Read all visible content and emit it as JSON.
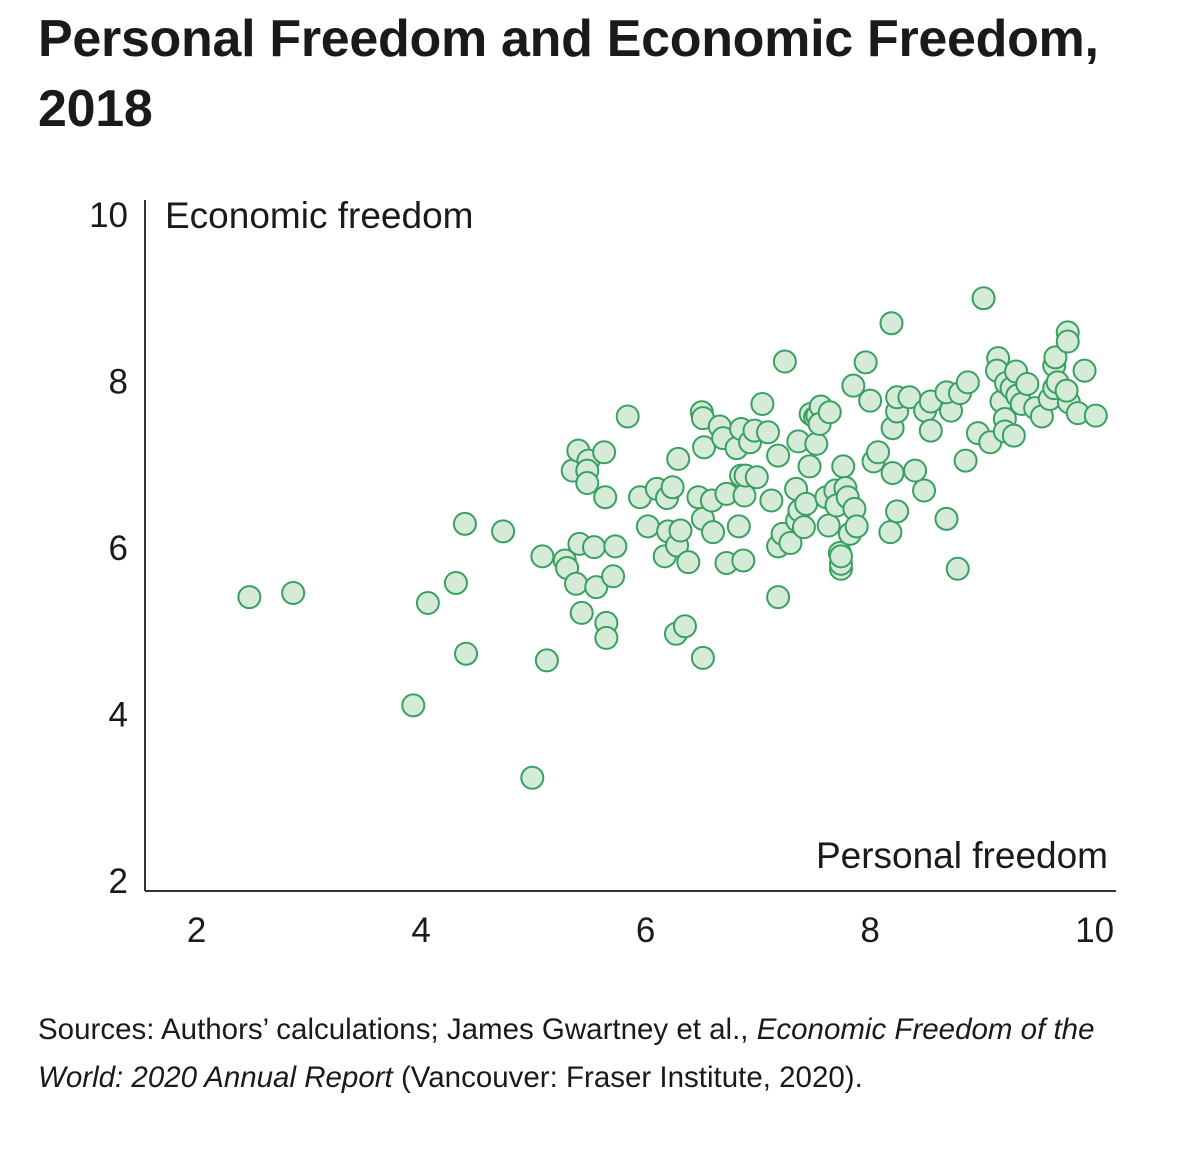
{
  "title": "Personal Freedom and Economic Freedom, 2018",
  "sources": {
    "prefix": "Sources: Authors’ calculations; James Gwartney et al., ",
    "italic": "Economic Freedom of the World: 2020 Annual Report",
    "suffix": " (Vancouver: Fraser Institute, 2020)."
  },
  "colors": {
    "point_fill": "#d5ebd8",
    "point_stroke": "#38a061",
    "axis": "#333333"
  },
  "chart_data": {
    "type": "scatter",
    "title": "Personal Freedom and Economic Freedom, 2018",
    "xlabel": "Personal freedom",
    "ylabel": "Economic freedom",
    "xlim": [
      1.54,
      10.19
    ],
    "ylim": [
      1.88,
      10.18
    ],
    "xticks": [
      "2",
      "4",
      "6",
      "8",
      "10"
    ],
    "yticks": [
      "2",
      "4",
      "6",
      "8",
      "10"
    ],
    "grid": false,
    "points": [
      [
        2.47,
        5.41
      ],
      [
        2.86,
        5.46
      ],
      [
        3.93,
        4.11
      ],
      [
        4.06,
        5.34
      ],
      [
        4.31,
        5.58
      ],
      [
        4.39,
        6.29
      ],
      [
        4.4,
        4.73
      ],
      [
        4.73,
        6.2
      ],
      [
        4.99,
        3.24
      ],
      [
        5.12,
        4.65
      ],
      [
        5.08,
        5.9
      ],
      [
        5.28,
        5.85
      ],
      [
        5.3,
        5.76
      ],
      [
        5.38,
        5.57
      ],
      [
        5.43,
        5.22
      ],
      [
        5.35,
        6.93
      ],
      [
        5.4,
        7.17
      ],
      [
        5.41,
        6.05
      ],
      [
        5.49,
        7.05
      ],
      [
        5.48,
        6.93
      ],
      [
        5.48,
        6.78
      ],
      [
        5.54,
        6.01
      ],
      [
        5.56,
        5.53
      ],
      [
        5.63,
        7.15
      ],
      [
        5.64,
        6.61
      ],
      [
        5.65,
        5.1
      ],
      [
        5.65,
        4.92
      ],
      [
        5.71,
        5.66
      ],
      [
        5.73,
        6.02
      ],
      [
        5.84,
        7.58
      ],
      [
        5.95,
        6.61
      ],
      [
        6.02,
        6.26
      ],
      [
        6.1,
        6.71
      ],
      [
        6.17,
        5.9
      ],
      [
        6.19,
        6.6
      ],
      [
        6.2,
        6.2
      ],
      [
        6.24,
        6.73
      ],
      [
        6.27,
        4.97
      ],
      [
        6.28,
        6.03
      ],
      [
        6.29,
        7.07
      ],
      [
        6.31,
        6.21
      ],
      [
        6.35,
        5.06
      ],
      [
        6.38,
        5.83
      ],
      [
        6.47,
        6.61
      ],
      [
        6.5,
        7.63
      ],
      [
        6.51,
        7.56
      ],
      [
        6.51,
        6.35
      ],
      [
        6.51,
        4.68
      ],
      [
        6.52,
        7.21
      ],
      [
        6.59,
        6.57
      ],
      [
        6.6,
        6.19
      ],
      [
        6.66,
        7.46
      ],
      [
        6.69,
        7.32
      ],
      [
        6.72,
        6.65
      ],
      [
        6.72,
        5.82
      ],
      [
        6.81,
        7.2
      ],
      [
        6.83,
        6.26
      ],
      [
        6.85,
        6.87
      ],
      [
        6.85,
        7.43
      ],
      [
        6.87,
        5.85
      ],
      [
        6.88,
        6.63
      ],
      [
        6.89,
        6.87
      ],
      [
        6.93,
        7.27
      ],
      [
        6.97,
        7.41
      ],
      [
        6.99,
        6.85
      ],
      [
        7.04,
        7.73
      ],
      [
        7.09,
        7.39
      ],
      [
        7.12,
        6.57
      ],
      [
        7.18,
        7.11
      ],
      [
        7.18,
        6.02
      ],
      [
        7.18,
        5.41
      ],
      [
        7.22,
        6.17
      ],
      [
        7.24,
        8.24
      ],
      [
        7.29,
        6.06
      ],
      [
        7.34,
        6.71
      ],
      [
        7.36,
        7.28
      ],
      [
        7.35,
        6.33
      ],
      [
        7.37,
        6.45
      ],
      [
        7.41,
        6.25
      ],
      [
        7.43,
        6.53
      ],
      [
        7.46,
        6.98
      ],
      [
        7.47,
        7.61
      ],
      [
        7.51,
        7.57
      ],
      [
        7.53,
        7.59
      ],
      [
        7.56,
        7.7
      ],
      [
        7.52,
        7.25
      ],
      [
        7.55,
        7.49
      ],
      [
        7.61,
        6.61
      ],
      [
        7.63,
        6.27
      ],
      [
        7.64,
        7.63
      ],
      [
        7.69,
        6.69
      ],
      [
        7.7,
        6.51
      ],
      [
        7.73,
        5.94
      ],
      [
        7.74,
        5.75
      ],
      [
        7.74,
        5.81
      ],
      [
        7.74,
        5.9
      ],
      [
        7.76,
        6.98
      ],
      [
        7.78,
        6.72
      ],
      [
        7.8,
        6.61
      ],
      [
        7.82,
        6.17
      ],
      [
        7.86,
        6.47
      ],
      [
        7.88,
        6.26
      ],
      [
        7.85,
        7.95
      ],
      [
        7.96,
        8.23
      ],
      [
        8.0,
        7.77
      ],
      [
        8.03,
        7.04
      ],
      [
        8.07,
        7.15
      ],
      [
        8.19,
        8.7
      ],
      [
        8.18,
        6.19
      ],
      [
        8.2,
        7.44
      ],
      [
        8.2,
        6.9
      ],
      [
        8.24,
        7.64
      ],
      [
        8.24,
        6.44
      ],
      [
        8.24,
        7.81
      ],
      [
        8.35,
        7.81
      ],
      [
        8.4,
        6.93
      ],
      [
        8.48,
        6.69
      ],
      [
        8.49,
        7.65
      ],
      [
        8.54,
        7.41
      ],
      [
        8.54,
        7.76
      ],
      [
        8.68,
        6.35
      ],
      [
        8.72,
        7.65
      ],
      [
        8.68,
        7.87
      ],
      [
        8.78,
        5.75
      ],
      [
        8.8,
        7.86
      ],
      [
        8.85,
        7.05
      ],
      [
        8.87,
        7.99
      ],
      [
        8.96,
        7.38
      ],
      [
        9.01,
        9.0
      ],
      [
        9.07,
        7.27
      ],
      [
        9.14,
        8.28
      ],
      [
        9.13,
        8.13
      ],
      [
        9.17,
        7.76
      ],
      [
        9.21,
        7.98
      ],
      [
        9.2,
        7.55
      ],
      [
        9.2,
        7.4
      ],
      [
        9.26,
        7.92
      ],
      [
        9.3,
        8.12
      ],
      [
        9.28,
        7.35
      ],
      [
        9.31,
        7.83
      ],
      [
        9.35,
        7.73
      ],
      [
        9.4,
        7.97
      ],
      [
        9.47,
        7.68
      ],
      [
        9.53,
        7.58
      ],
      [
        9.6,
        7.79
      ],
      [
        9.64,
        7.92
      ],
      [
        9.64,
        8.19
      ],
      [
        9.65,
        8.29
      ],
      [
        9.67,
        7.99
      ],
      [
        9.76,
        8.59
      ],
      [
        9.76,
        8.48
      ],
      [
        9.77,
        7.75
      ],
      [
        9.75,
        7.89
      ],
      [
        9.85,
        7.62
      ],
      [
        9.91,
        8.13
      ],
      [
        10.01,
        7.59
      ]
    ]
  }
}
